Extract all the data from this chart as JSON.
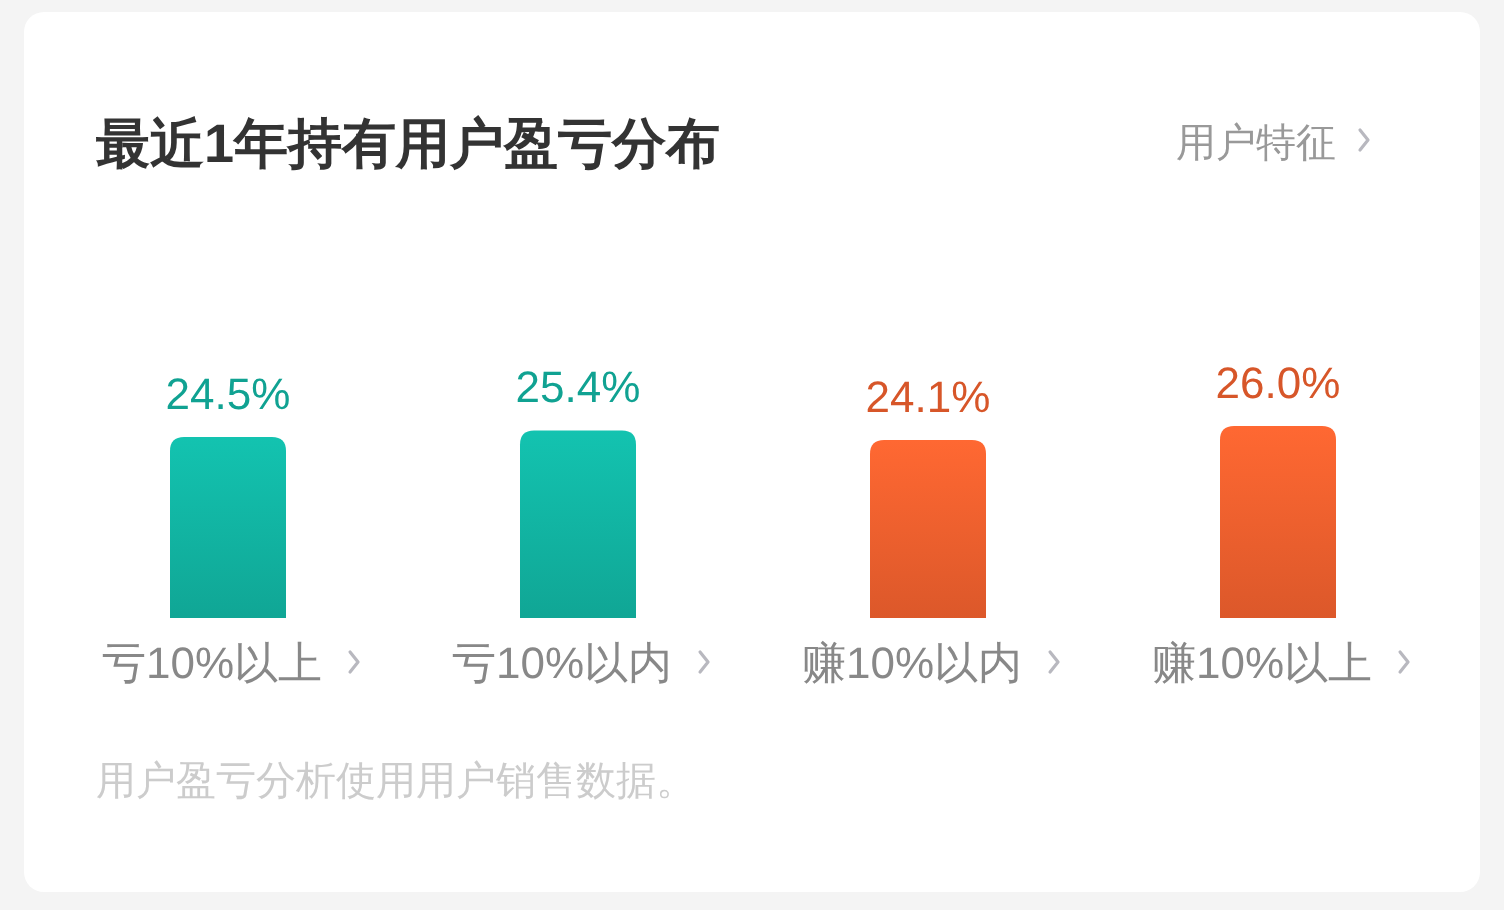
{
  "chart_data": {
    "type": "bar",
    "title": "最近1年持有用户盈亏分布",
    "categories": [
      "亏10%以上",
      "亏10%以内",
      "赚10%以内",
      "赚10%以上"
    ],
    "values": [
      24.5,
      25.4,
      24.1,
      26.0
    ],
    "colors": [
      "#12b8a6",
      "#12b8a6",
      "#f4622f",
      "#f4622f"
    ],
    "value_labels": [
      "24.5%",
      "25.4%",
      "24.1%",
      "26.0%"
    ],
    "annotations": [
      "用户特征",
      "用户盈亏分析使用用户销售数据。"
    ]
  }
}
